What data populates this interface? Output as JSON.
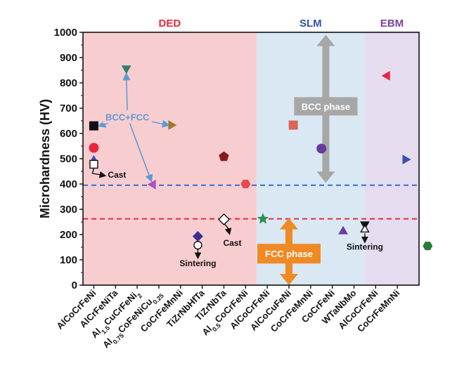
{
  "chart_data": {
    "type": "scatter",
    "ylabel": "Microhardness (HV)",
    "xlabel": "",
    "ylim": [
      0,
      1000
    ],
    "yticks": [
      0,
      100,
      200,
      300,
      400,
      500,
      600,
      700,
      800,
      900,
      1000
    ],
    "categories": [
      {
        "pre": "AlCoCrFeNi"
      },
      {
        "pre": "AlCrFeNiTa"
      },
      {
        "pre": "Al",
        "sub1": "1.5",
        "mid": "CuCrFeNi",
        "sub2": "2"
      },
      {
        "pre": "Al",
        "sub1": "0.75",
        "mid": "CoFeNiCu",
        "sub2": "0.25"
      },
      {
        "pre": "CoCrFeMnNi"
      },
      {
        "pre": "TiZrNbHfTa"
      },
      {
        "pre": "TiZrNbTa"
      },
      {
        "pre": "Al",
        "sub1": "0.5",
        "mid": "CoCrFeNi"
      },
      {
        "pre": "AlCoCrFeNi"
      },
      {
        "pre": "AlCoCuFeNi"
      },
      {
        "pre": "CoCrFeMnNi"
      },
      {
        "pre": "CoCrFeNi"
      },
      {
        "pre": "WTaNbMo"
      },
      {
        "pre": "AlCoCrFeNi"
      },
      {
        "pre": "CoCrFeMnNi"
      }
    ],
    "regions": [
      {
        "label": "DED",
        "color": "#e8283a",
        "fill": "#f8cdd0",
        "from": -0.5,
        "to": 7.5
      },
      {
        "label": "SLM",
        "color": "#2e55a6",
        "fill": "#d9e8f3",
        "from": 7.5,
        "to": 12.5
      },
      {
        "label": "EBM",
        "color": "#7b3fa0",
        "fill": "#e6dcef",
        "from": 12.5,
        "to": 14.5
      }
    ],
    "reference_lines": [
      {
        "y": 395,
        "color": "#2f6fd6"
      },
      {
        "y": 262,
        "color": "#e8283a"
      }
    ],
    "points": [
      {
        "x": 0,
        "y": 630,
        "marker": "square",
        "color": "#111111"
      },
      {
        "x": 0,
        "y": 543,
        "marker": "circle",
        "color": "#e8283a"
      },
      {
        "x": 0,
        "y": 495,
        "marker": "triangle-up",
        "color": "#3a4fb0"
      },
      {
        "x": 0,
        "y": 478,
        "marker": "square-open",
        "color": "#111111"
      },
      {
        "x": 1.5,
        "y": 855,
        "marker": "triangle-down",
        "color": "#2e7d6e"
      },
      {
        "x": 2.7,
        "y": 398,
        "marker": "triangle-left",
        "color": "#b04fc4"
      },
      {
        "x": 3.6,
        "y": 633,
        "marker": "triangle-right",
        "color": "#9b7a2e"
      },
      {
        "x": 4.8,
        "y": 193,
        "marker": "diamond",
        "color": "#3a2f8f"
      },
      {
        "x": 4.8,
        "y": 158,
        "marker": "circle-open",
        "color": "#111111"
      },
      {
        "x": 6.0,
        "y": 508,
        "marker": "pentagon",
        "color": "#8a1a1a"
      },
      {
        "x": 6.0,
        "y": 260,
        "marker": "diamond-open",
        "color": "#111111"
      },
      {
        "x": 7.0,
        "y": 400,
        "marker": "hexagon",
        "color": "#e8484f"
      },
      {
        "x": 7.8,
        "y": 262,
        "marker": "star",
        "color": "#2f8f4e"
      },
      {
        "x": 9.2,
        "y": 633,
        "marker": "square",
        "color": "#d9645a"
      },
      {
        "x": 10.5,
        "y": 540,
        "marker": "circle",
        "color": "#6a3a9a"
      },
      {
        "x": 11.5,
        "y": 215,
        "marker": "triangle-up",
        "color": "#6a3aa8"
      },
      {
        "x": 12.5,
        "y": 238,
        "marker": "triangle-down",
        "color": "#111111"
      },
      {
        "x": 12.5,
        "y": 222,
        "marker": "triangle-up-open",
        "color": "#111111"
      },
      {
        "x": 13.5,
        "y": 828,
        "marker": "triangle-left",
        "color": "#e8283a"
      },
      {
        "x": 14.4,
        "y": 497,
        "marker": "triangle-right",
        "color": "#3a4fb0"
      },
      {
        "x": 15.4,
        "y": 155,
        "marker": "hexagon",
        "color": "#2a7a3a"
      }
    ],
    "annotations": {
      "bcc_fcc": "BCC+FCC",
      "cast_1": "Cast",
      "cast_2": "Cast",
      "sintering_1": "Sintering",
      "sintering_2": "Sintering",
      "bcc_phase": "BCC phase",
      "fcc_phase": "FCC phase"
    }
  }
}
